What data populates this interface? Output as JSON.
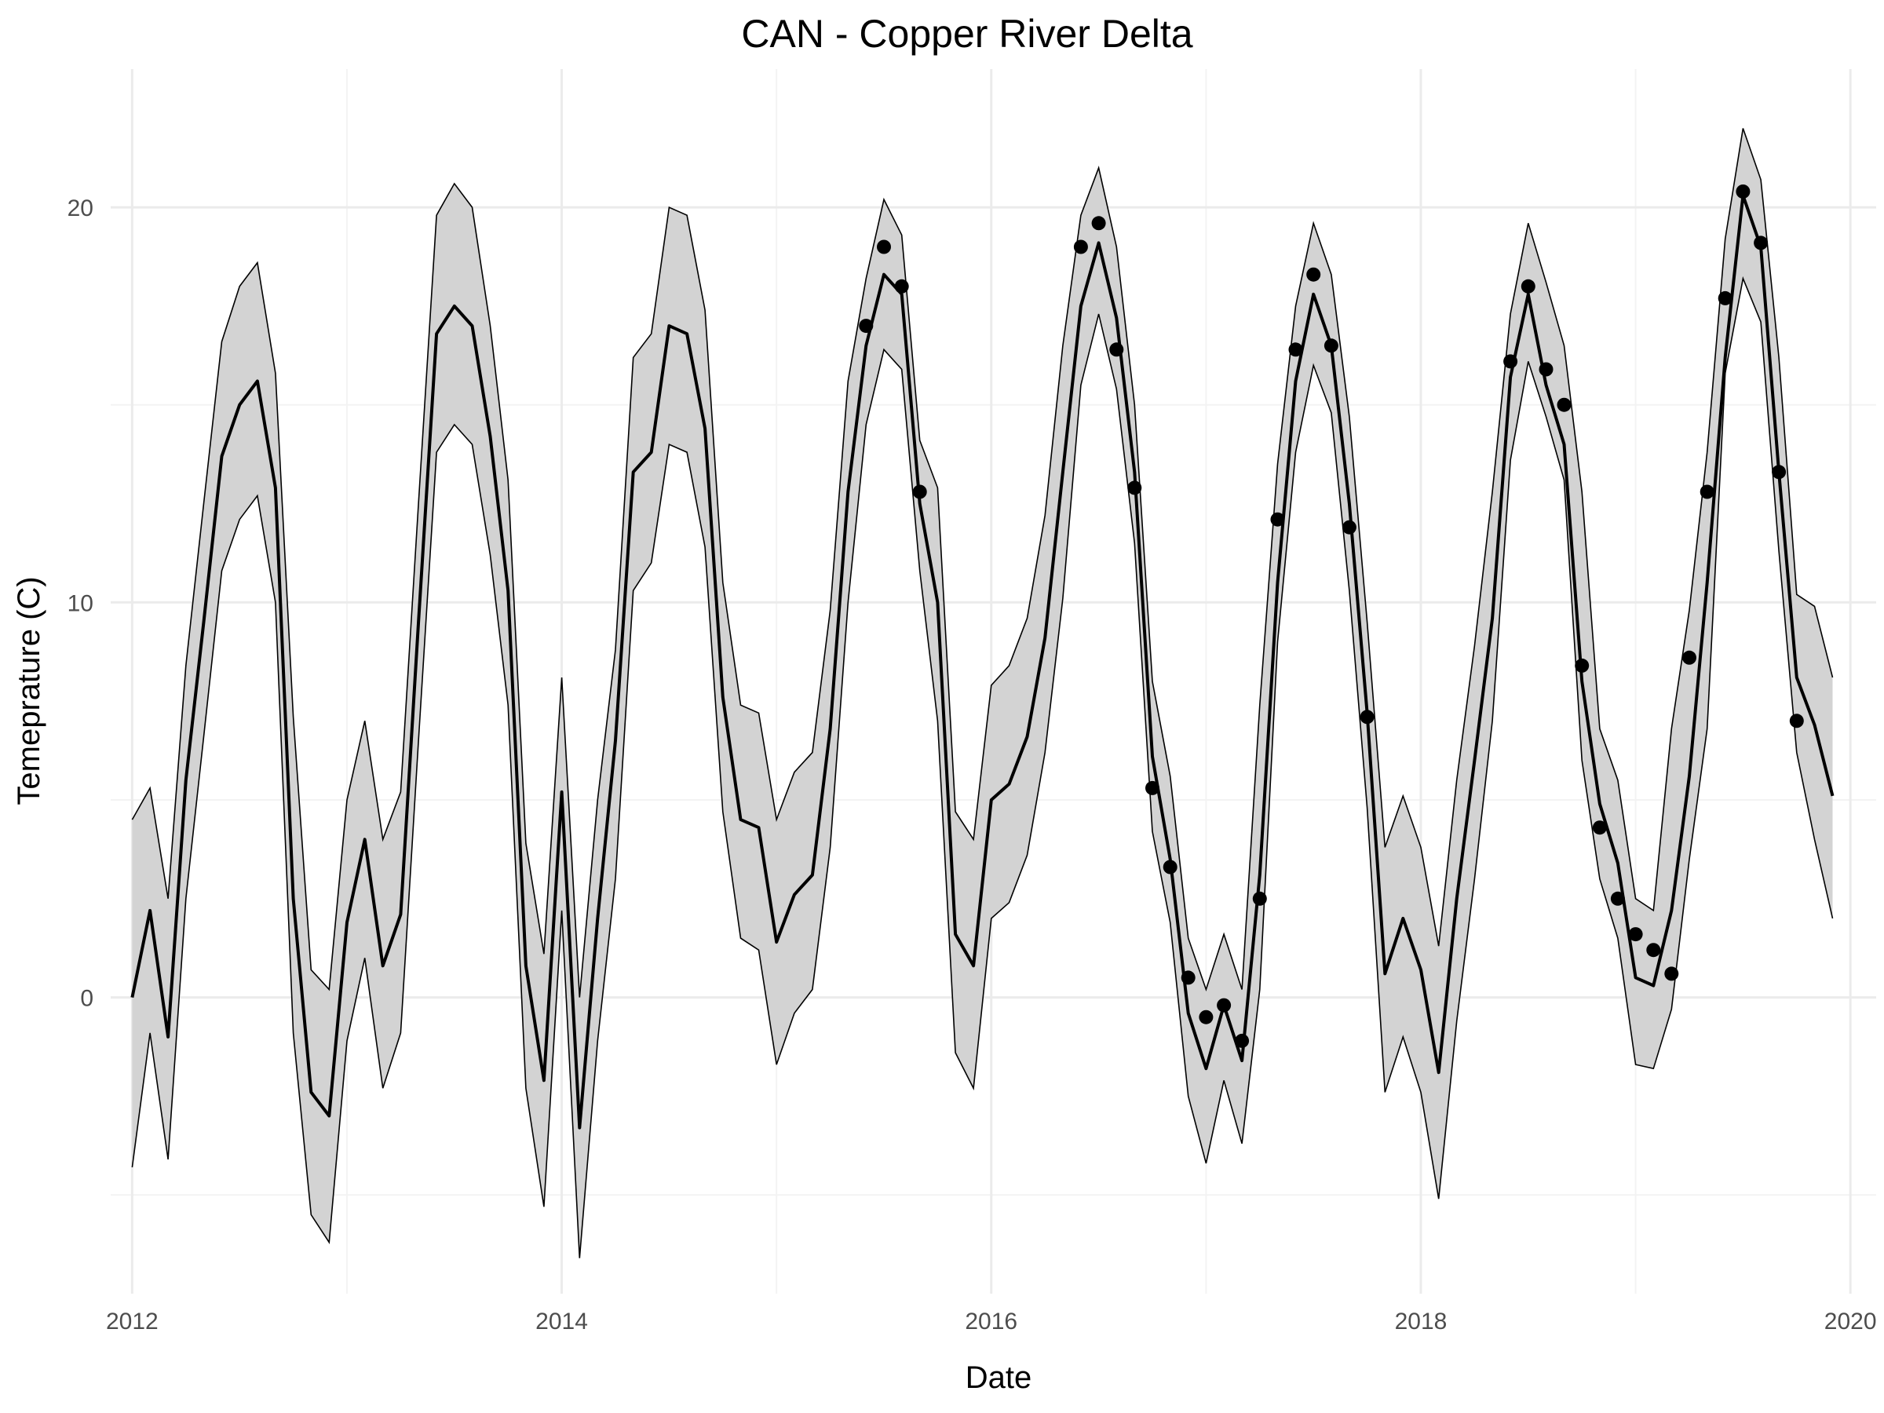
{
  "chart_data": {
    "type": "line",
    "title": "CAN - Copper River Delta",
    "xlabel": "Date",
    "ylabel": "Temeprature (C)",
    "xlim": [
      2011.9,
      2020.12
    ],
    "ylim": [
      -7.5,
      23.5
    ],
    "x_ticks": [
      "2012",
      "2014",
      "2016",
      "2018",
      "2020"
    ],
    "x_tick_values": [
      2012,
      2014,
      2016,
      2018,
      2020
    ],
    "y_ticks": [
      "0",
      "10",
      "20"
    ],
    "y_tick_values": [
      0,
      10,
      20
    ],
    "grid": true,
    "legend": "none",
    "series": [
      {
        "kind": "ribbon-line",
        "x": [
          2012.0,
          2012.083,
          2012.167,
          2012.25,
          2012.333,
          2012.417,
          2012.5,
          2012.583,
          2012.667,
          2012.75,
          2012.833,
          2012.917,
          2013.0,
          2013.083,
          2013.167,
          2013.25,
          2013.333,
          2013.417,
          2013.5,
          2013.583,
          2013.667,
          2013.75,
          2013.833,
          2013.917,
          2014.0,
          2014.083,
          2014.167,
          2014.25,
          2014.333,
          2014.417,
          2014.5,
          2014.583,
          2014.667,
          2014.75,
          2014.833,
          2014.917,
          2015.0,
          2015.083,
          2015.167,
          2015.25,
          2015.333,
          2015.417,
          2015.5,
          2015.583,
          2015.667,
          2015.75,
          2015.833,
          2015.917,
          2016.0,
          2016.083,
          2016.167,
          2016.25,
          2016.333,
          2016.417,
          2016.5,
          2016.583,
          2016.667,
          2016.75,
          2016.833,
          2016.917,
          2017.0,
          2017.083,
          2017.167,
          2017.25,
          2017.333,
          2017.417,
          2017.5,
          2017.583,
          2017.667,
          2017.75,
          2017.833,
          2017.917,
          2018.0,
          2018.083,
          2018.167,
          2018.25,
          2018.333,
          2018.417,
          2018.5,
          2018.583,
          2018.667,
          2018.75,
          2018.833,
          2018.917,
          2019.0,
          2019.083,
          2019.167,
          2019.25,
          2019.333,
          2019.417,
          2019.5,
          2019.583,
          2019.667,
          2019.75,
          2019.833,
          2019.917
        ],
        "y": [
          0.0,
          2.2,
          -1.0,
          5.5,
          9.5,
          13.7,
          15.0,
          15.6,
          12.9,
          2.5,
          -2.4,
          -3.0,
          1.9,
          4.0,
          0.8,
          2.1,
          9.5,
          16.8,
          17.5,
          17.0,
          14.2,
          10.3,
          0.8,
          -2.1,
          5.2,
          -3.3,
          2.0,
          6.5,
          13.3,
          13.8,
          17.0,
          16.8,
          14.4,
          7.6,
          4.5,
          4.3,
          1.4,
          2.6,
          3.1,
          6.8,
          12.8,
          16.5,
          18.3,
          17.8,
          12.5,
          10.0,
          1.6,
          0.8,
          5.0,
          5.4,
          6.6,
          9.1,
          13.3,
          17.5,
          19.1,
          17.2,
          13.3,
          6.1,
          3.5,
          -0.4,
          -1.8,
          -0.2,
          -1.6,
          3.1,
          10.5,
          15.6,
          17.8,
          16.5,
          12.5,
          7.2,
          0.6,
          2.0,
          0.7,
          -1.9,
          2.5,
          6.0,
          9.6,
          15.7,
          17.8,
          15.5,
          14.0,
          8.0,
          4.9,
          3.4,
          0.5,
          0.3,
          2.2,
          5.6,
          10.5,
          16.2,
          20.3,
          19.0,
          13.3,
          8.1,
          6.9,
          5.1
        ],
        "upper": [
          4.5,
          5.3,
          2.5,
          8.4,
          12.5,
          16.6,
          18.0,
          18.6,
          15.8,
          7.1,
          0.7,
          0.2,
          5.0,
          7.0,
          4.0,
          5.2,
          12.5,
          19.8,
          20.6,
          20.0,
          17.0,
          13.1,
          3.9,
          1.1,
          8.1,
          0.0,
          5.0,
          8.8,
          16.2,
          16.8,
          20.0,
          19.8,
          17.4,
          10.5,
          7.4,
          7.2,
          4.5,
          5.7,
          6.2,
          9.8,
          15.6,
          18.2,
          20.2,
          19.3,
          14.1,
          12.9,
          4.7,
          4.0,
          7.9,
          8.4,
          9.6,
          12.2,
          16.5,
          19.8,
          21.0,
          19.0,
          15.0,
          8.0,
          5.6,
          1.5,
          0.2,
          1.6,
          0.2,
          7.4,
          13.5,
          17.5,
          19.6,
          18.3,
          14.7,
          9.5,
          3.8,
          5.1,
          3.8,
          1.3,
          5.5,
          8.9,
          12.8,
          17.3,
          19.6,
          18.1,
          16.5,
          12.8,
          6.8,
          5.5,
          2.5,
          2.2,
          6.8,
          9.8,
          13.8,
          19.2,
          22.0,
          20.7,
          16.2,
          10.2,
          9.9,
          8.1
        ],
        "lower": [
          -4.3,
          -0.9,
          -4.1,
          2.5,
          6.6,
          10.8,
          12.1,
          12.7,
          10.0,
          -0.9,
          -5.5,
          -6.2,
          -1.1,
          1.0,
          -2.3,
          -0.9,
          6.5,
          13.8,
          14.5,
          14.0,
          11.2,
          7.4,
          -2.3,
          -5.3,
          2.2,
          -6.6,
          -1.1,
          3.0,
          10.3,
          11.0,
          14.0,
          13.8,
          11.4,
          4.7,
          1.5,
          1.2,
          -1.7,
          -0.4,
          0.2,
          3.8,
          10.0,
          14.5,
          16.4,
          15.9,
          10.8,
          7.0,
          -1.4,
          -2.3,
          2.0,
          2.4,
          3.6,
          6.2,
          10.1,
          15.5,
          17.3,
          15.4,
          11.5,
          4.2,
          1.9,
          -2.5,
          -4.2,
          -2.1,
          -3.7,
          0.2,
          9.0,
          13.8,
          16.0,
          14.8,
          10.3,
          4.8,
          -2.4,
          -1.0,
          -2.4,
          -5.1,
          -0.6,
          3.0,
          7.0,
          13.6,
          16.1,
          14.7,
          13.1,
          6.0,
          3.0,
          1.5,
          -1.7,
          -1.8,
          -0.3,
          3.5,
          6.8,
          15.8,
          18.2,
          17.1,
          11.3,
          6.2,
          4.0,
          2.0
        ]
      },
      {
        "kind": "points",
        "x": [
          2015.417,
          2015.5,
          2015.583,
          2015.667,
          2016.417,
          2016.5,
          2016.583,
          2016.667,
          2016.75,
          2016.833,
          2016.917,
          2017.0,
          2017.083,
          2017.167,
          2017.25,
          2017.333,
          2017.417,
          2017.5,
          2017.583,
          2017.667,
          2017.75,
          2018.417,
          2018.5,
          2018.583,
          2018.667,
          2018.75,
          2018.833,
          2018.917,
          2019.0,
          2019.083,
          2019.167,
          2019.25,
          2019.333,
          2019.417,
          2019.5,
          2019.583,
          2019.667,
          2019.75
        ],
        "y": [
          17.0,
          19.0,
          18.0,
          12.8,
          19.0,
          19.6,
          16.4,
          12.9,
          5.3,
          3.3,
          0.5,
          -0.5,
          -0.2,
          -1.1,
          2.5,
          12.1,
          16.4,
          18.3,
          16.5,
          11.9,
          7.1,
          16.1,
          18.0,
          15.9,
          15.0,
          8.4,
          4.3,
          2.5,
          1.6,
          1.2,
          0.6,
          8.6,
          12.8,
          17.7,
          20.4,
          19.1,
          13.3,
          7.0
        ]
      }
    ]
  }
}
